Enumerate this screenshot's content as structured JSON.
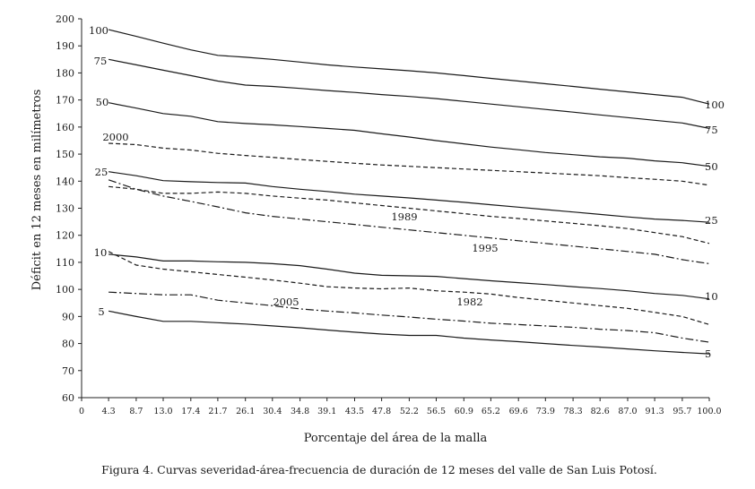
{
  "chart_data": {
    "type": "line",
    "title": "",
    "xlabel": "Porcentaje del área de la malla",
    "ylabel": "Déficit en 12 meses en milímetros",
    "caption": "Figura 4. Curvas severidad-área-frecuencia de duración de 12 meses del valle de San Luis Potosí.",
    "ylim": [
      60,
      200
    ],
    "xlim": [
      0,
      100
    ],
    "grid": false,
    "x_ticks": [
      "0",
      "4.3",
      "8.7",
      "13.0",
      "17.4",
      "21.7",
      "26.1",
      "30.4",
      "34.8",
      "39.1",
      "43.5",
      "47.8",
      "52.2",
      "56.5",
      "60.9",
      "65.2",
      "69.6",
      "73.9",
      "78.3",
      "82.6",
      "87.0",
      "91.3",
      "95.7",
      "100.0"
    ],
    "y_ticks": [
      60,
      70,
      80,
      90,
      100,
      110,
      120,
      130,
      140,
      150,
      160,
      170,
      180,
      190,
      200
    ],
    "series": [
      {
        "name": "100",
        "style": "solid",
        "label_start": "100",
        "label_end": "100",
        "x": [
          4.3,
          8.7,
          13.0,
          17.4,
          21.7,
          26.1,
          30.4,
          34.8,
          39.1,
          43.5,
          47.8,
          52.2,
          56.5,
          60.9,
          65.2,
          69.6,
          73.9,
          78.3,
          82.6,
          87.0,
          91.3,
          95.7,
          100.0
        ],
        "y": [
          196,
          193.5,
          191,
          188.5,
          186.5,
          185.8,
          185,
          184,
          183,
          182.2,
          181.5,
          180.8,
          180,
          179,
          178,
          177,
          176,
          175,
          174,
          173,
          172,
          171,
          168.5
        ]
      },
      {
        "name": "75",
        "style": "solid",
        "label_start": "75",
        "label_end": "75",
        "x": [
          4.3,
          8.7,
          13.0,
          17.4,
          21.7,
          26.1,
          30.4,
          34.8,
          39.1,
          43.5,
          47.8,
          52.2,
          56.5,
          60.9,
          65.2,
          69.6,
          73.9,
          78.3,
          82.6,
          87.0,
          91.3,
          95.7,
          100.0
        ],
        "y": [
          185,
          183,
          181,
          179,
          177,
          175.5,
          175,
          174.3,
          173.5,
          172.8,
          172,
          171.3,
          170.5,
          169.5,
          168.5,
          167.5,
          166.5,
          165.5,
          164.5,
          163.5,
          162.5,
          161.5,
          159.5
        ]
      },
      {
        "name": "50",
        "style": "solid",
        "label_start": "50",
        "label_end": "50",
        "x": [
          4.3,
          8.7,
          13.0,
          17.4,
          21.7,
          26.1,
          30.4,
          34.8,
          39.1,
          43.5,
          47.8,
          52.2,
          56.5,
          60.9,
          65.2,
          69.6,
          73.9,
          78.3,
          82.6,
          87.0,
          91.3,
          95.7,
          100.0
        ],
        "y": [
          169,
          167,
          165,
          164,
          162,
          161.3,
          160.8,
          160.2,
          159.5,
          158.8,
          157.5,
          156.3,
          155,
          153.8,
          152.6,
          151.6,
          150.6,
          149.8,
          149,
          148.5,
          147.5,
          146.8,
          145.5
        ]
      },
      {
        "name": "2000",
        "style": "dashed",
        "label_start": "2000",
        "label_end": "",
        "x": [
          4.3,
          8.7,
          13.0,
          17.4,
          21.7,
          26.1,
          30.4,
          34.8,
          39.1,
          43.5,
          47.8,
          52.2,
          56.5,
          60.9,
          65.2,
          69.6,
          73.9,
          78.3,
          82.6,
          87.0,
          91.3,
          95.7,
          100.0
        ],
        "y": [
          154,
          153.5,
          152.2,
          151.5,
          150.3,
          149.5,
          148.8,
          148,
          147.3,
          146.6,
          146,
          145.5,
          145,
          144.5,
          144,
          143.5,
          143,
          142.5,
          142,
          141.3,
          140.7,
          140,
          138.5
        ]
      },
      {
        "name": "25",
        "style": "solid",
        "label_start": "25",
        "label_end": "25",
        "x": [
          4.3,
          8.7,
          13.0,
          17.4,
          21.7,
          26.1,
          30.4,
          34.8,
          39.1,
          43.5,
          47.8,
          52.2,
          56.5,
          60.9,
          65.2,
          69.6,
          73.9,
          78.3,
          82.6,
          87.0,
          91.3,
          95.7,
          100.0
        ],
        "y": [
          143.5,
          142,
          140.2,
          139.8,
          139.5,
          139.3,
          138,
          137,
          136.2,
          135.2,
          134.5,
          133.8,
          133,
          132.2,
          131.3,
          130.4,
          129.5,
          128.6,
          127.7,
          126.8,
          126,
          125.5,
          124.8
        ]
      },
      {
        "name": "1989",
        "style": "dashed",
        "label_start": "",
        "label_end": "1989",
        "x": [
          4.3,
          8.7,
          13.0,
          17.4,
          21.7,
          26.1,
          30.4,
          34.8,
          39.1,
          43.5,
          47.8,
          52.2,
          56.5,
          60.9,
          65.2,
          69.6,
          73.9,
          78.3,
          82.6,
          87.0,
          91.3,
          95.7,
          100.0
        ],
        "y": [
          138,
          137,
          135.5,
          135.5,
          136,
          135.5,
          134.5,
          133.7,
          133,
          132,
          131,
          130,
          129,
          128,
          127,
          126.2,
          125.3,
          124.4,
          123.5,
          122.5,
          121,
          119.5,
          117
        ]
      },
      {
        "name": "1995",
        "style": "dashdot",
        "label_start": "",
        "label_end": "1995",
        "x": [
          4.3,
          8.7,
          13.0,
          17.4,
          21.7,
          26.1,
          30.4,
          34.8,
          39.1,
          43.5,
          47.8,
          52.2,
          56.5,
          60.9,
          65.2,
          69.6,
          73.9,
          78.3,
          82.6,
          87.0,
          91.3,
          95.7,
          100.0
        ],
        "y": [
          140.5,
          137,
          134.5,
          132.5,
          130.5,
          128.3,
          127,
          126,
          125,
          124,
          123,
          122,
          121,
          120,
          119,
          118,
          117,
          116,
          115,
          114,
          113,
          111,
          109.5
        ]
      },
      {
        "name": "10",
        "style": "solid",
        "label_start": "10",
        "label_end": "10",
        "x": [
          4.3,
          8.7,
          13.0,
          17.4,
          21.7,
          26.1,
          30.4,
          34.8,
          39.1,
          43.5,
          47.8,
          52.2,
          56.5,
          60.9,
          65.2,
          69.6,
          73.9,
          78.3,
          82.6,
          87.0,
          91.3,
          95.7,
          100.0
        ],
        "y": [
          113,
          112,
          110.5,
          110.5,
          110.2,
          110,
          109.5,
          108.8,
          107.5,
          106,
          105.2,
          105,
          104.8,
          104,
          103.2,
          102.5,
          101.8,
          101,
          100.3,
          99.5,
          98.5,
          97.8,
          96.5
        ]
      },
      {
        "name": "1982",
        "style": "dashed",
        "label_start": "",
        "label_end": "1982",
        "x": [
          4.3,
          8.7,
          13.0,
          17.4,
          21.7,
          26.1,
          30.4,
          34.8,
          39.1,
          43.5,
          47.8,
          52.2,
          56.5,
          60.9,
          65.2,
          69.6,
          73.9,
          78.3,
          82.6,
          87.0,
          91.3,
          95.7,
          100.0
        ],
        "y": [
          114,
          109,
          107.5,
          106.5,
          105.5,
          104.5,
          103.5,
          102.3,
          101,
          100.5,
          100.2,
          100.5,
          99.5,
          99,
          98.3,
          97,
          96,
          95,
          94,
          93,
          91.5,
          90,
          87
        ]
      },
      {
        "name": "2005",
        "style": "dashdot",
        "label_start": "",
        "label_end": "2005",
        "x": [
          4.3,
          8.7,
          13.0,
          17.4,
          21.7,
          26.1,
          30.4,
          34.8,
          39.1,
          43.5,
          47.8,
          52.2,
          56.5,
          60.9,
          65.2,
          69.6,
          73.9,
          78.3,
          82.6,
          87.0,
          91.3,
          95.7,
          100.0
        ],
        "y": [
          99,
          98.5,
          98,
          98,
          96,
          95,
          94,
          92.8,
          92,
          91.3,
          90.5,
          89.8,
          89,
          88.3,
          87.5,
          87,
          86.5,
          86,
          85.3,
          84.8,
          84,
          82,
          80.5
        ]
      },
      {
        "name": "5",
        "style": "solid",
        "label_start": "5",
        "label_end": "5",
        "x": [
          4.3,
          8.7,
          13.0,
          17.4,
          21.7,
          26.1,
          30.4,
          34.8,
          39.1,
          43.5,
          47.8,
          52.2,
          56.5,
          60.9,
          65.2,
          69.6,
          73.9,
          78.3,
          82.6,
          87.0,
          91.3,
          95.7,
          100.0
        ],
        "y": [
          92,
          90,
          88.2,
          88.2,
          87.7,
          87.2,
          86.5,
          85.8,
          85,
          84.2,
          83.5,
          83,
          83,
          82,
          81.3,
          80.7,
          80,
          79.3,
          78.7,
          78,
          77.3,
          76.7,
          76.2
        ]
      }
    ]
  }
}
